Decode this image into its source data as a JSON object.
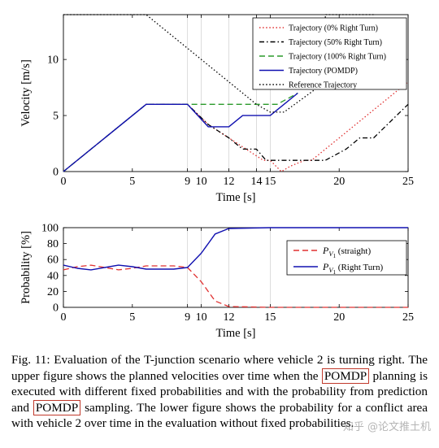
{
  "chart_data": [
    {
      "type": "line",
      "xlabel": "Time [s]",
      "ylabel": "Velocity [m/s]",
      "xlim": [
        0,
        25
      ],
      "ylim": [
        0,
        14
      ],
      "xticks": [
        0,
        5,
        9,
        10,
        12,
        14,
        15,
        20,
        25
      ],
      "yticks": [
        0,
        5,
        10
      ],
      "vgrid": [
        9,
        10,
        12,
        14,
        15
      ],
      "legend_position": "top-right",
      "series": [
        {
          "name": "Trajectory (0% Right Turn)",
          "color": "#e03030",
          "dash": "dotted",
          "points": [
            [
              0,
              0
            ],
            [
              6,
              6
            ],
            [
              9,
              6
            ],
            [
              10.5,
              4.2
            ],
            [
              12,
              3
            ],
            [
              13.5,
              1.8
            ],
            [
              14.5,
              1
            ],
            [
              15,
              1
            ],
            [
              15.8,
              0
            ],
            [
              16.5,
              0.5
            ],
            [
              17.5,
              1
            ],
            [
              18,
              1
            ],
            [
              25,
              8
            ]
          ]
        },
        {
          "name": "Trajectory (50% Right Turn)",
          "color": "#000000",
          "dash": "dashdot",
          "points": [
            [
              0,
              0
            ],
            [
              6,
              6
            ],
            [
              9,
              6
            ],
            [
              10.5,
              4.2
            ],
            [
              12,
              3
            ],
            [
              13,
              2
            ],
            [
              14,
              2
            ],
            [
              14.7,
              1
            ],
            [
              19,
              1
            ],
            [
              20.5,
              2
            ],
            [
              21.5,
              3
            ],
            [
              22.5,
              3
            ],
            [
              25,
              6
            ]
          ]
        },
        {
          "name": "Trajectory (100% Right Turn)",
          "color": "#2a9a2a",
          "dash": "dashed",
          "points": [
            [
              0,
              0
            ],
            [
              6,
              6
            ],
            [
              9,
              6
            ],
            [
              15.5,
              6
            ],
            [
              17,
              7
            ]
          ]
        },
        {
          "name": "Trajectory (POMDP)",
          "color": "#1010b0",
          "dash": "solid",
          "points": [
            [
              0,
              0
            ],
            [
              6,
              6
            ],
            [
              9,
              6
            ],
            [
              10.5,
              4
            ],
            [
              12,
              4
            ],
            [
              13,
              5
            ],
            [
              15,
              5
            ],
            [
              17,
              7
            ]
          ]
        },
        {
          "name": "Reference Trajectory",
          "color": "#000000",
          "dash": "dotted",
          "points": [
            [
              0,
              14
            ],
            [
              6,
              14
            ],
            [
              8,
              12
            ],
            [
              12,
              8
            ],
            [
              14,
              6
            ],
            [
              15,
              5.3
            ],
            [
              16,
              5.3
            ],
            [
              19,
              8
            ],
            [
              19,
              14
            ],
            [
              22.5,
              14
            ]
          ]
        }
      ]
    },
    {
      "type": "line",
      "xlabel": "Time [s]",
      "ylabel": "Probability [%]",
      "xlim": [
        0,
        25
      ],
      "ylim": [
        0,
        100
      ],
      "xticks": [
        0,
        5,
        9,
        10,
        12,
        15,
        20,
        25
      ],
      "yticks": [
        0,
        20,
        40,
        60,
        80,
        100
      ],
      "vgrid": [
        9,
        10,
        12,
        15
      ],
      "legend_position": "center-right",
      "series": [
        {
          "name": "P_V1 (straight)",
          "color": "#e03030",
          "dash": "dashed",
          "points": [
            [
              0,
              47
            ],
            [
              1,
              51
            ],
            [
              2,
              53
            ],
            [
              3,
              50
            ],
            [
              4,
              47
            ],
            [
              5,
              49
            ],
            [
              6,
              52
            ],
            [
              7,
              52
            ],
            [
              8,
              52
            ],
            [
              9,
              50
            ],
            [
              10,
              32
            ],
            [
              11,
              8
            ],
            [
              12,
              1
            ],
            [
              15,
              0
            ],
            [
              25,
              0
            ]
          ]
        },
        {
          "name": "P_V1 (Right Turn)",
          "color": "#1010b0",
          "dash": "solid",
          "points": [
            [
              0,
              53
            ],
            [
              1,
              49
            ],
            [
              2,
              47
            ],
            [
              3,
              50
            ],
            [
              4,
              53
            ],
            [
              5,
              51
            ],
            [
              6,
              48
            ],
            [
              7,
              48
            ],
            [
              8,
              48
            ],
            [
              9,
              50
            ],
            [
              10,
              68
            ],
            [
              11,
              92
            ],
            [
              12,
              99
            ],
            [
              15,
              100
            ],
            [
              25,
              100
            ]
          ]
        }
      ]
    }
  ],
  "legend_sub": "V",
  "legend_sub2": "1",
  "caption": {
    "part1": "Fig. 11: Evaluation of the T-junction scenario where vehicle 2 is turning right. The upper figure shows the planned velocities over time when the ",
    "hl1": "POMDP",
    "part2": " planning is executed with different fixed probabilities and with the probability from prediction and ",
    "hl2": "POMDP",
    "part3": " sampling. The lower figure shows the probability for a conflict area with vehicle 2 over time in the evaluation without fixed probabilities."
  },
  "watermark": "知乎 @论文推土机"
}
